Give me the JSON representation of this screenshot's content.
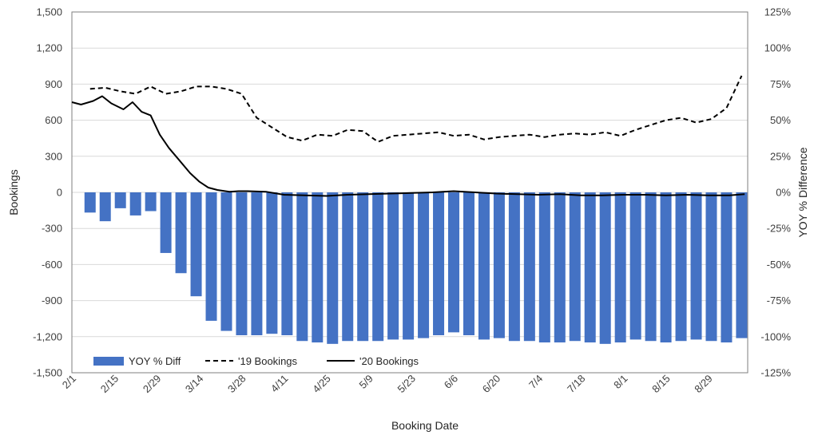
{
  "chart_data": {
    "type": "bar",
    "xlabel": "Booking Date",
    "ylabel_left": "Bookings",
    "ylabel_right": "YOY % Difference",
    "ylim_left": [
      -1500,
      1500
    ],
    "ylim_right": [
      -125,
      125
    ],
    "left_ticks": [
      "1,500",
      "1,200",
      "900",
      "600",
      "300",
      "0",
      "-300",
      "-600",
      "-900",
      "-1,200",
      "-1,500"
    ],
    "right_ticks": [
      "125%",
      "100%",
      "75%",
      "50%",
      "25%",
      "0%",
      "-25%",
      "-50%",
      "-75%",
      "-100%",
      "-125%"
    ],
    "date_ticks": [
      "2/1",
      "2/15",
      "2/29",
      "3/14",
      "3/28",
      "4/11",
      "4/25",
      "5/9",
      "5/23",
      "6/6",
      "6/20",
      "7/4",
      "7/18",
      "8/1",
      "8/15",
      "8/29"
    ],
    "grid": true,
    "legend_position": "bottom-left",
    "series": [
      {
        "name": "YOY % Diff",
        "kind": "bar",
        "axis": "right",
        "color": "#4472C4",
        "x": [
          "2/7",
          "2/12",
          "2/17",
          "2/22",
          "2/27",
          "3/3",
          "3/8",
          "3/13",
          "3/18",
          "3/23",
          "3/28",
          "4/2",
          "4/7",
          "4/12",
          "4/17",
          "4/22",
          "4/27",
          "5/2",
          "5/7",
          "5/12",
          "5/17",
          "5/22",
          "5/27",
          "6/1",
          "6/6",
          "6/11",
          "6/16",
          "6/21",
          "6/26",
          "7/1",
          "7/6",
          "7/11",
          "7/16",
          "7/21",
          "7/26",
          "7/31",
          "8/5",
          "8/10",
          "8/15",
          "8/20",
          "8/25",
          "8/30",
          "9/4",
          "9/9"
        ],
        "values": [
          -14,
          -20,
          -11,
          -16,
          -13,
          -42,
          -56,
          -72,
          -89,
          -96,
          -99,
          -99,
          -98,
          -99,
          -103,
          -104,
          -105,
          -103,
          -103,
          -103,
          -102,
          -102,
          -101,
          -99,
          -97,
          -99,
          -102,
          -101,
          -103,
          -103,
          -104,
          -104,
          -103,
          -104,
          -105,
          -104,
          -102,
          -103,
          -104,
          -103,
          -102,
          -103,
          -104,
          -101
        ]
      },
      {
        "name": "'19 Bookings",
        "kind": "line",
        "style": "dashed",
        "axis": "left",
        "color": "#000000",
        "x": [
          "2/7",
          "2/12",
          "2/17",
          "2/22",
          "2/27",
          "3/3",
          "3/8",
          "3/13",
          "3/18",
          "3/23",
          "3/28",
          "4/2",
          "4/7",
          "4/12",
          "4/17",
          "4/22",
          "4/27",
          "5/2",
          "5/7",
          "5/12",
          "5/17",
          "5/22",
          "5/27",
          "6/1",
          "6/6",
          "6/11",
          "6/16",
          "6/21",
          "6/26",
          "7/1",
          "7/6",
          "7/11",
          "7/16",
          "7/21",
          "7/26",
          "7/31",
          "8/5",
          "8/10",
          "8/15",
          "8/20",
          "8/25",
          "8/30",
          "9/4",
          "9/9"
        ],
        "values": [
          860,
          870,
          840,
          820,
          880,
          820,
          840,
          880,
          880,
          860,
          820,
          620,
          540,
          460,
          430,
          480,
          470,
          520,
          510,
          420,
          470,
          480,
          490,
          500,
          470,
          480,
          440,
          460,
          470,
          480,
          460,
          480,
          490,
          480,
          500,
          470,
          520,
          560,
          600,
          620,
          580,
          610,
          700,
          970
        ]
      },
      {
        "name": "'20 Bookings",
        "kind": "line",
        "style": "solid",
        "axis": "left",
        "color": "#000000",
        "x": [
          "2/1",
          "2/4",
          "2/8",
          "2/11",
          "2/14",
          "2/18",
          "2/21",
          "2/24",
          "2/27",
          "3/1",
          "3/4",
          "3/7",
          "3/11",
          "3/14",
          "3/17",
          "3/20",
          "3/24",
          "3/27",
          "3/30",
          "4/5",
          "4/11",
          "4/18",
          "4/25",
          "5/2",
          "5/9",
          "5/16",
          "5/23",
          "5/30",
          "6/6",
          "6/13",
          "6/20",
          "6/27",
          "7/4",
          "7/11",
          "7/18",
          "7/25",
          "8/1",
          "8/8",
          "8/15",
          "8/22",
          "8/29",
          "9/5",
          "9/10"
        ],
        "values": [
          750,
          730,
          760,
          800,
          740,
          690,
          750,
          670,
          640,
          480,
          370,
          280,
          160,
          90,
          40,
          20,
          5,
          10,
          10,
          5,
          -20,
          -25,
          -30,
          -20,
          -15,
          -10,
          -5,
          0,
          10,
          0,
          -10,
          -15,
          -20,
          -15,
          -25,
          -25,
          -20,
          -20,
          -25,
          -20,
          -25,
          -25,
          -15
        ]
      }
    ]
  }
}
